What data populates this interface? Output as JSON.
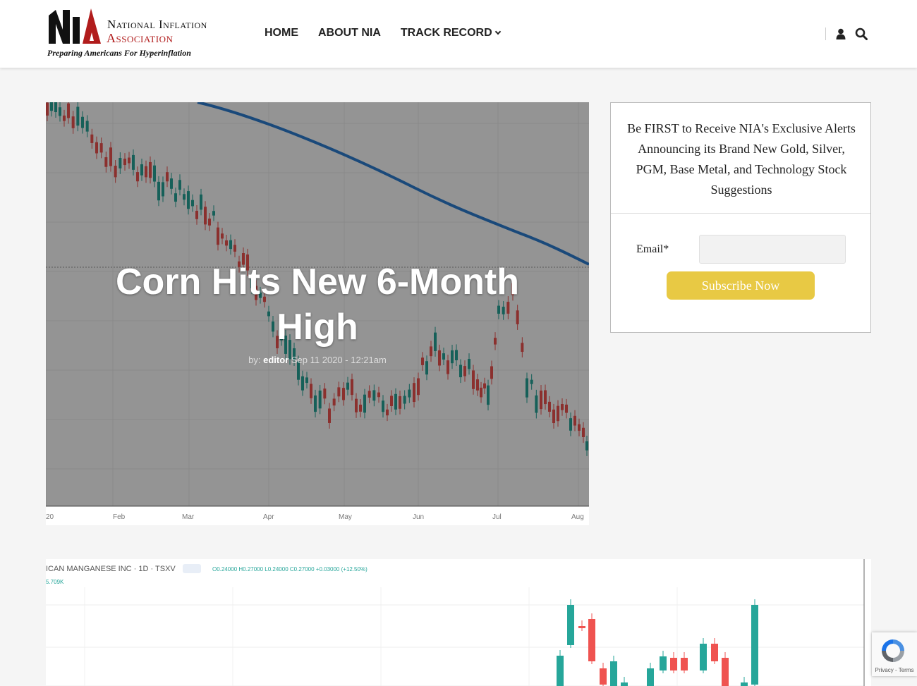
{
  "logo": {
    "mark": "NIA",
    "line1": "National Inflation",
    "line2": "Association",
    "tagline": "Preparing Americans For Hyperinflation"
  },
  "nav": {
    "items": [
      {
        "label": "HOME"
      },
      {
        "label": "ABOUT NIA"
      },
      {
        "label": "TRACK RECORD",
        "has_dropdown": true
      }
    ],
    "icons": [
      "user-icon",
      "search-icon"
    ]
  },
  "hero": {
    "title": "Corn Hits New 6-Month High",
    "meta_prefix": "by:",
    "author": "editor",
    "date": "Sep 11 2020 - 12:21am",
    "chart_axis": [
      "20",
      "Feb",
      "Mar",
      "Apr",
      "May",
      "Jun",
      "Jul",
      "Aug"
    ]
  },
  "widget": {
    "text": "Be FIRST to Receive NIA's Exclusive Alerts Announcing its Brand New Gold, Silver, PGM, Base Metal, and Technology Stock Suggestions",
    "email_label": "Email*",
    "email_value": "",
    "subscribe_label": "Subscribe Now"
  },
  "post2": {
    "chart_header": "ICAN MANGANESE INC · 1D · TSXV",
    "chart_ohlc": "O0.24000  H0.27000  L0.24000  C0.27000  +0.03000 (+12.50%)",
    "chart_volume": "5.709K"
  },
  "recaptcha": {
    "text": "Privacy - Terms"
  },
  "colors": {
    "accent_red": "#b11c1c",
    "button_yellow": "#e8c944",
    "candle_up": "#26a69a",
    "candle_down": "#ef5350",
    "ma_line": "#2d7fd3"
  }
}
